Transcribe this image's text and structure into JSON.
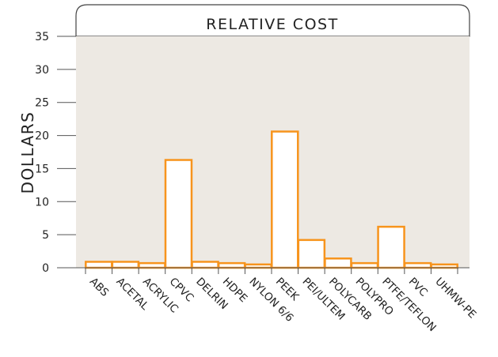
{
  "chart_data": {
    "type": "bar",
    "title": "RELATIVE COST",
    "ylabel": "DOLLARS",
    "xlabel": "",
    "ylim": [
      0,
      35
    ],
    "yticks": [
      0,
      5,
      10,
      15,
      20,
      25,
      30,
      35
    ],
    "grid": false,
    "categories": [
      "ABS",
      "ACETAL",
      "ACRYLIC",
      "CPVC",
      "DELRIN",
      "HDPE",
      "NYLON 6/6",
      "PEEK",
      "PEI/ULTEM",
      "POLYCARB",
      "POLYPRO",
      "PTFE/TEFLON",
      "PVC",
      "UHMW-PE"
    ],
    "values": [
      0.9,
      0.9,
      0.7,
      16.3,
      0.9,
      0.7,
      0.5,
      20.6,
      4.2,
      1.4,
      0.7,
      6.2,
      0.7,
      0.5
    ],
    "colors": {
      "bar_fill": "#ffffff",
      "bar_stroke": "#f7941d",
      "plot_background": "#ede9e3",
      "axis": "#555555",
      "text": "#222222"
    }
  }
}
